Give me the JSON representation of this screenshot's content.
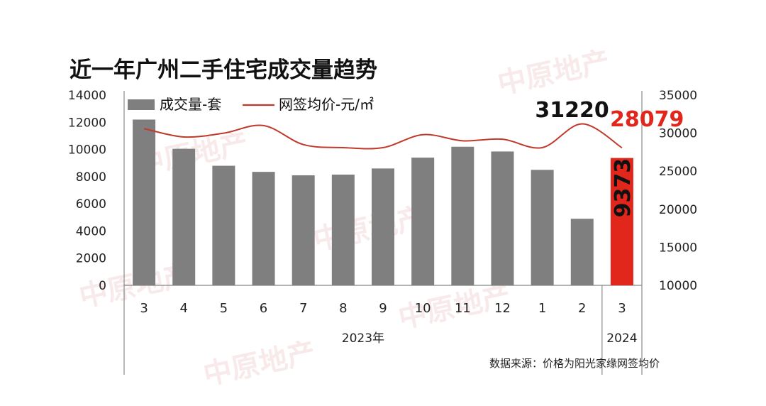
{
  "watermark_text": "中原地产",
  "chart_data": {
    "type": "bar+line",
    "title": "近一年广州二手住宅成交量趋势",
    "categories": [
      "3",
      "4",
      "5",
      "6",
      "7",
      "8",
      "9",
      "10",
      "11",
      "12",
      "1",
      "2",
      "3"
    ],
    "year_groups": [
      {
        "label": "2023年",
        "from": 0,
        "to": 11
      },
      {
        "label": "2024",
        "from": 12,
        "to": 12
      }
    ],
    "series": [
      {
        "name": "成交量-套",
        "type": "bar",
        "axis": "left",
        "color": "#7f7f7f",
        "highlight_color": "#e1261c",
        "values": [
          12200,
          10050,
          8800,
          8350,
          8100,
          8150,
          8600,
          9400,
          10200,
          9850,
          8500,
          4900,
          9373
        ]
      },
      {
        "name": "网签均价-元/㎡",
        "type": "line",
        "axis": "right",
        "color": "#c0392b",
        "values": [
          30600,
          29500,
          30000,
          31000,
          28500,
          28100,
          28100,
          29800,
          29000,
          29200,
          28100,
          31220,
          28079
        ]
      }
    ],
    "y_left": {
      "min": 0,
      "max": 14000,
      "ticks": [
        0,
        2000,
        4000,
        6000,
        8000,
        10000,
        12000,
        14000
      ]
    },
    "y_right": {
      "min": 10000,
      "max": 35000,
      "ticks": [
        10000,
        15000,
        20000,
        25000,
        30000,
        35000
      ]
    },
    "annotations": {
      "price_peak": "31220",
      "price_last": "28079",
      "volume_last": "9373"
    },
    "legend_placement": "top-left",
    "grid": false,
    "source_note": "数据来源：价格为阳光家缘网签均价"
  }
}
